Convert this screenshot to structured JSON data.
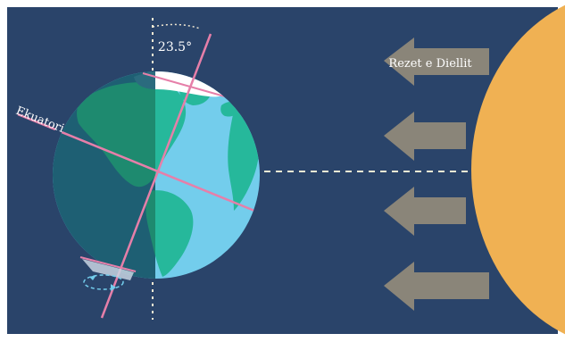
{
  "labels": {
    "tilt_angle": "23.5°",
    "equator": "Ekuatori",
    "sun_rays": "Rezet e Diellit"
  },
  "colors": {
    "background": "#2a446a",
    "ocean_lit": "#73cdec",
    "ocean_dark": "#1e5f73",
    "land_lit": "#26b89b",
    "land_dark": "#1e8a6f",
    "ice": "#ffffff",
    "sun": "#f0b153",
    "ray_arrow": "#8a8579",
    "equator_line": "#e67fa9",
    "dashed_line": "#f3ead4"
  },
  "tilt_degrees": 23.5
}
